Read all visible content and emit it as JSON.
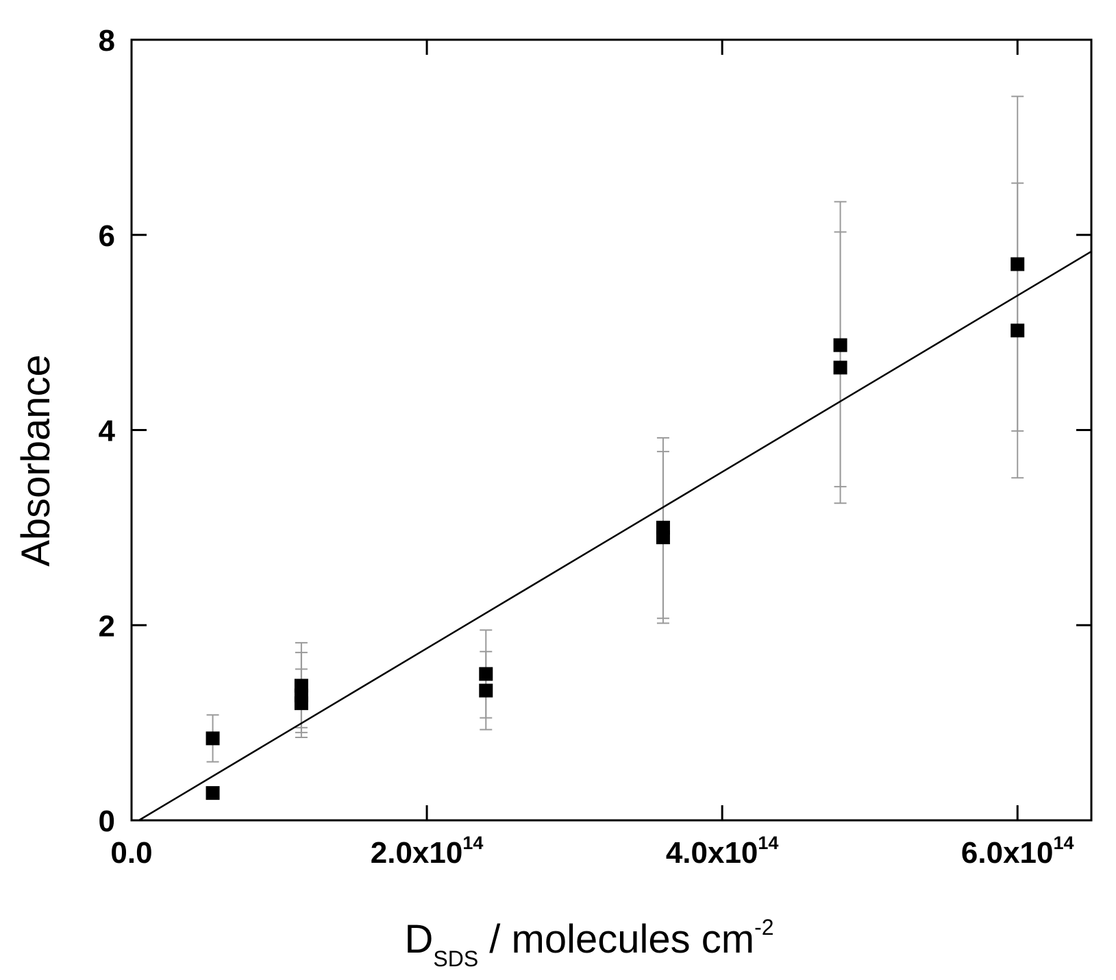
{
  "chart_data": {
    "type": "scatter",
    "title": "",
    "xlabel": {
      "main": "D",
      "subscript": "SDS",
      "rest": " / molecules cm",
      "superscript": "-2"
    },
    "ylabel": "Absorbance",
    "xlim": [
      0,
      650000000000000.0
    ],
    "ylim": [
      0,
      8
    ],
    "xticks": [
      {
        "value": 0,
        "label": "0.0",
        "exponent": ""
      },
      {
        "value": 200000000000000.0,
        "label": "2.0x10",
        "exponent": "14"
      },
      {
        "value": 400000000000000.0,
        "label": "4.0x10",
        "exponent": "14"
      },
      {
        "value": 600000000000000.0,
        "label": "6.0x10",
        "exponent": "14"
      }
    ],
    "yticks": [
      {
        "value": 0,
        "label": "0"
      },
      {
        "value": 2,
        "label": "2"
      },
      {
        "value": 4,
        "label": "4"
      },
      {
        "value": 6,
        "label": "6"
      },
      {
        "value": 8,
        "label": "8"
      }
    ],
    "grid": false,
    "legend": "none",
    "series": [
      {
        "marker": "square",
        "color": "#000000",
        "error_color": "#9a9a9a",
        "points": [
          {
            "x": 55000000000000.0,
            "y": 0.84,
            "err_low": 0.6,
            "err_high": 1.08
          },
          {
            "x": 55000000000000.0,
            "y": 0.28,
            "err_low": null,
            "err_high": null
          },
          {
            "x": 115000000000000.0,
            "y": 1.38,
            "err_low": 0.9,
            "err_high": 1.82
          },
          {
            "x": 115000000000000.0,
            "y": 1.28,
            "err_low": 0.85,
            "err_high": 1.72
          },
          {
            "x": 115000000000000.0,
            "y": 1.2,
            "err_low": 0.95,
            "err_high": 1.55
          },
          {
            "x": 240000000000000.0,
            "y": 1.5,
            "err_low": 1.05,
            "err_high": 1.95
          },
          {
            "x": 240000000000000.0,
            "y": 1.33,
            "err_low": 0.93,
            "err_high": 1.73
          },
          {
            "x": 360000000000000.0,
            "y": 3.0,
            "err_low": 2.07,
            "err_high": 3.92
          },
          {
            "x": 360000000000000.0,
            "y": 2.9,
            "err_low": 2.02,
            "err_high": 3.78
          },
          {
            "x": 480000000000000.0,
            "y": 4.87,
            "err_low": 3.42,
            "err_high": 6.34
          },
          {
            "x": 480000000000000.0,
            "y": 4.64,
            "err_low": 3.25,
            "err_high": 6.03
          },
          {
            "x": 600000000000000.0,
            "y": 5.7,
            "err_low": 3.99,
            "err_high": 7.42
          },
          {
            "x": 600000000000000.0,
            "y": 5.02,
            "err_low": 3.51,
            "err_high": 6.53
          }
        ]
      }
    ],
    "fit_line": {
      "x": [
        5000000000000.0,
        650000000000000.0
      ],
      "y": [
        0.0,
        5.83
      ],
      "color": "#000000"
    }
  }
}
